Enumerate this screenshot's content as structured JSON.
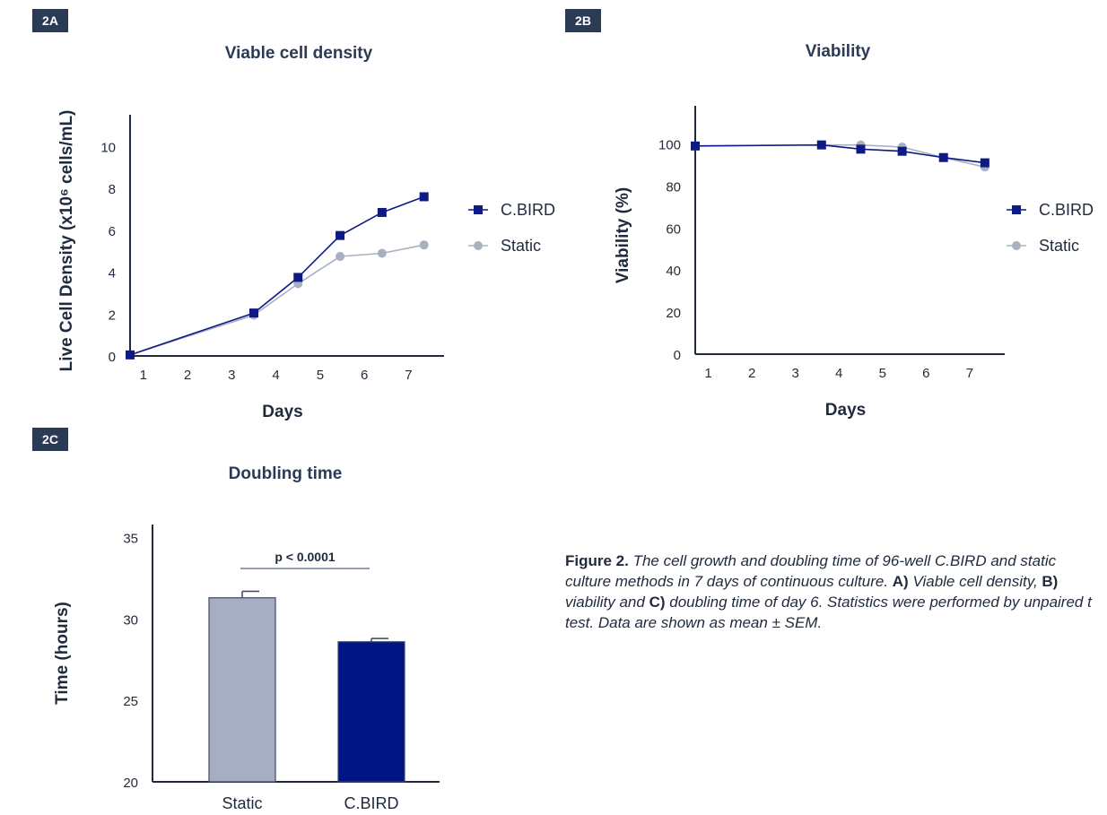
{
  "panels": {
    "a": {
      "tag": "2A"
    },
    "b": {
      "tag": "2B"
    },
    "c": {
      "tag": "2C"
    }
  },
  "caption": {
    "figure_label": "Figure 2.",
    "text1": " The cell growth and doubling time of 96-well C.BIRD and static culture methods in 7 days of continuous culture. ",
    "a_label": "A)",
    "a_text": " Viable cell density, ",
    "b_label": "B)",
    "b_text": " viability and ",
    "c_label": "C)",
    "c_text": " doubling time of day 6. Statistics were performed by unpaired t test. Data are shown as mean ± SEM."
  },
  "colors": {
    "cbird": "#0d1a86",
    "static": "#a9b0c2",
    "static_bar": "#a7aec1",
    "axis": "#1f2a3c"
  },
  "chart_data": [
    {
      "type": "line",
      "title": "Viable cell density",
      "xlabel": "Days",
      "ylabel": "Live Cell Density (x10⁶ cells/mL)",
      "x_ticks": [
        1,
        2,
        3,
        4,
        5,
        6,
        7
      ],
      "y_ticks": [
        0,
        2,
        4,
        6,
        8,
        10
      ],
      "xlim": [
        0.7,
        7.6
      ],
      "ylim": [
        0,
        11
      ],
      "legend_position": "right",
      "series": [
        {
          "name": "C.BIRD",
          "marker": "square",
          "color": "#0d1a86",
          "x": [
            0.7,
            3.5,
            4.5,
            5.45,
            6.4,
            7.35
          ],
          "y": [
            0.05,
            2.05,
            3.75,
            5.75,
            6.85,
            7.6
          ]
        },
        {
          "name": "Static",
          "marker": "circle",
          "color": "#a9b0c2",
          "x": [
            0.7,
            3.5,
            4.5,
            5.45,
            6.4,
            7.35
          ],
          "y": [
            0.05,
            1.95,
            3.45,
            4.75,
            4.9,
            5.3
          ]
        }
      ]
    },
    {
      "type": "line",
      "title": "Viability",
      "xlabel": "Days",
      "ylabel": "Viability (%)",
      "x_ticks": [
        1,
        2,
        3,
        4,
        5,
        6,
        7
      ],
      "y_ticks": [
        0,
        20,
        40,
        60,
        80,
        100
      ],
      "xlim": [
        0.7,
        7.6
      ],
      "ylim": [
        0,
        113
      ],
      "legend_position": "right",
      "series": [
        {
          "name": "C.BIRD",
          "marker": "square",
          "color": "#0d1a86",
          "x": [
            0.7,
            3.6,
            4.5,
            5.45,
            6.4,
            7.35
          ],
          "y": [
            99,
            99.5,
            97.5,
            96.5,
            93.5,
            91
          ]
        },
        {
          "name": "Static",
          "marker": "circle",
          "color": "#a9b0c2",
          "x": [
            0.7,
            3.6,
            4.5,
            5.45,
            6.4,
            7.35
          ],
          "y": [
            99,
            99.5,
            99.5,
            98.5,
            93.5,
            89
          ]
        }
      ]
    },
    {
      "type": "bar",
      "title": "Doubling time",
      "xlabel": "",
      "ylabel": "Time (hours)",
      "categories": [
        "Static",
        "C.BIRD"
      ],
      "values": [
        31.3,
        28.6
      ],
      "errors": [
        0.4,
        0.2
      ],
      "colors": [
        "#a7aec1",
        "#001484"
      ],
      "y_ticks": [
        20,
        25,
        30,
        35
      ],
      "ylim": [
        20,
        35.8
      ],
      "annotation": "p < 0.0001"
    }
  ]
}
